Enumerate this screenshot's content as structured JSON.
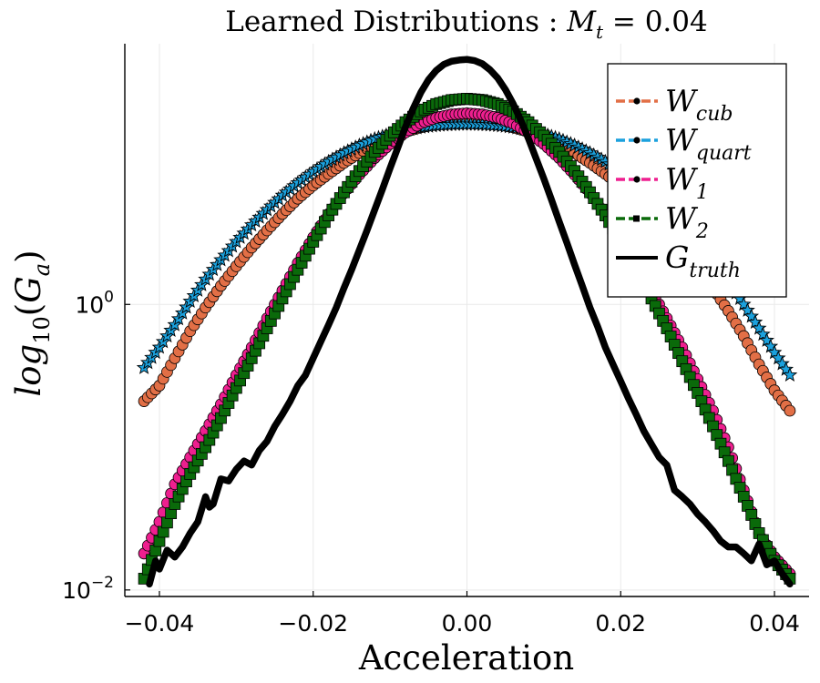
{
  "chart_data": {
    "type": "scatter",
    "title": "Learned Distributions : M_t = 0.04",
    "title_parts": {
      "prefix": "Learned Distributions : ",
      "var": "M",
      "sub": "t",
      "suffix": " = 0.04"
    },
    "xlabel": "Acceleration",
    "ylabel": "log_10(G_a)",
    "ylabel_parts": {
      "fn": "log",
      "sub": "10",
      "open": "(",
      "var": "G",
      "var_sub": "a",
      "close": ")"
    },
    "x_scale": "linear",
    "y_scale": "log10",
    "xlim": [
      -0.0445,
      0.0445
    ],
    "ylim": [
      0.009,
      67
    ],
    "grid": true,
    "legend_position": "top-right",
    "xticks": [
      {
        "value": -0.04,
        "label": "−0.04"
      },
      {
        "value": -0.02,
        "label": "−0.02"
      },
      {
        "value": 0.0,
        "label": "0.00"
      },
      {
        "value": 0.02,
        "label": "0.02"
      },
      {
        "value": 0.04,
        "label": "0.04"
      }
    ],
    "yticks": [
      {
        "value": 0.01,
        "base": "10",
        "exp": "−2"
      },
      {
        "value": 1,
        "base": "10",
        "exp": "0"
      }
    ],
    "series": [
      {
        "name": "W_cub",
        "base": "W",
        "sub": "cub",
        "color": "#e26f46",
        "marker": "circle",
        "style": "dashed",
        "x": [
          -0.042,
          -0.04,
          -0.038,
          -0.036,
          -0.034,
          -0.032,
          -0.03,
          -0.028,
          -0.026,
          -0.024,
          -0.022,
          -0.02,
          -0.018,
          -0.016,
          -0.014,
          -0.012,
          -0.01,
          -0.008,
          -0.006,
          -0.004,
          -0.002,
          0.0,
          0.002,
          0.004,
          0.006,
          0.008,
          0.01,
          0.012,
          0.014,
          0.016,
          0.018,
          0.02,
          0.022,
          0.024,
          0.026,
          0.028,
          0.03,
          0.032,
          0.034,
          0.036,
          0.038,
          0.04,
          0.042
        ],
        "y": [
          0.21,
          0.27,
          0.42,
          0.65,
          0.95,
          1.35,
          1.85,
          2.5,
          3.3,
          4.3,
          5.5,
          6.8,
          8.2,
          9.8,
          11.5,
          13.2,
          14.8,
          16.2,
          17.4,
          18.3,
          18.9,
          19.1,
          18.9,
          18.3,
          17.4,
          16.2,
          14.8,
          13.2,
          11.5,
          9.8,
          8.2,
          6.8,
          5.5,
          4.3,
          3.3,
          2.5,
          1.85,
          1.3,
          0.9,
          0.6,
          0.38,
          0.25,
          0.18
        ]
      },
      {
        "name": "W_quart",
        "base": "W",
        "sub": "quart",
        "color": "#1ba1dd",
        "marker": "star",
        "style": "dashed",
        "x": [
          -0.042,
          -0.04,
          -0.038,
          -0.036,
          -0.034,
          -0.032,
          -0.03,
          -0.028,
          -0.026,
          -0.024,
          -0.022,
          -0.02,
          -0.018,
          -0.016,
          -0.014,
          -0.012,
          -0.01,
          -0.008,
          -0.006,
          -0.004,
          -0.002,
          0.0,
          0.002,
          0.004,
          0.006,
          0.008,
          0.01,
          0.012,
          0.014,
          0.016,
          0.018,
          0.02,
          0.022,
          0.024,
          0.026,
          0.028,
          0.03,
          0.032,
          0.034,
          0.036,
          0.038,
          0.04,
          0.042
        ],
        "y": [
          0.36,
          0.5,
          0.72,
          1.05,
          1.5,
          2.05,
          2.75,
          3.6,
          4.6,
          5.8,
          7.1,
          8.5,
          10.0,
          11.5,
          13.0,
          14.4,
          15.6,
          16.6,
          17.4,
          17.9,
          18.2,
          18.3,
          18.2,
          17.9,
          17.4,
          16.6,
          15.6,
          14.4,
          13.0,
          11.5,
          10.0,
          8.5,
          7.1,
          5.8,
          4.6,
          3.6,
          2.75,
          2.0,
          1.45,
          1.0,
          0.68,
          0.46,
          0.32
        ]
      },
      {
        "name": "W_1",
        "base": "W",
        "sub": "1",
        "color": "#ee1f8f",
        "marker": "circle",
        "style": "dashed",
        "x": [
          -0.042,
          -0.04,
          -0.038,
          -0.036,
          -0.034,
          -0.032,
          -0.03,
          -0.028,
          -0.026,
          -0.024,
          -0.022,
          -0.02,
          -0.018,
          -0.016,
          -0.014,
          -0.012,
          -0.01,
          -0.008,
          -0.006,
          -0.004,
          -0.002,
          0.0,
          0.002,
          0.004,
          0.006,
          0.008,
          0.01,
          0.012,
          0.014,
          0.016,
          0.018,
          0.02,
          0.022,
          0.024,
          0.026,
          0.028,
          0.03,
          0.032,
          0.034,
          0.036,
          0.038,
          0.04,
          0.042
        ],
        "y": [
          0.018,
          0.03,
          0.055,
          0.085,
          0.13,
          0.2,
          0.32,
          0.5,
          0.8,
          1.25,
          1.95,
          2.95,
          4.3,
          6.0,
          8.1,
          10.6,
          13.3,
          16.0,
          18.5,
          20.3,
          21.4,
          21.8,
          21.4,
          20.3,
          18.5,
          16.0,
          13.3,
          10.6,
          8.1,
          6.0,
          4.3,
          2.95,
          1.95,
          1.25,
          0.8,
          0.5,
          0.3,
          0.18,
          0.1,
          0.05,
          0.025,
          0.017,
          0.013
        ]
      },
      {
        "name": "W_2",
        "base": "W",
        "sub": "2",
        "color": "#0a6a0a",
        "marker": "square",
        "style": "dashed",
        "x": [
          -0.042,
          -0.04,
          -0.038,
          -0.036,
          -0.034,
          -0.032,
          -0.03,
          -0.028,
          -0.026,
          -0.024,
          -0.022,
          -0.02,
          -0.018,
          -0.016,
          -0.014,
          -0.012,
          -0.01,
          -0.008,
          -0.006,
          -0.004,
          -0.002,
          0.0,
          0.002,
          0.004,
          0.006,
          0.008,
          0.01,
          0.012,
          0.014,
          0.016,
          0.018,
          0.02,
          0.022,
          0.024,
          0.026,
          0.028,
          0.03,
          0.032,
          0.034,
          0.036,
          0.038,
          0.04,
          0.042
        ],
        "y": [
          0.012,
          0.022,
          0.04,
          0.065,
          0.1,
          0.16,
          0.26,
          0.42,
          0.68,
          1.1,
          1.75,
          2.75,
          4.2,
          6.1,
          8.6,
          11.7,
          15.2,
          18.9,
          22.5,
          25.3,
          27.0,
          27.6,
          27.0,
          25.3,
          22.5,
          18.9,
          15.2,
          11.7,
          8.6,
          6.1,
          4.2,
          2.75,
          1.75,
          1.1,
          0.68,
          0.4,
          0.24,
          0.14,
          0.08,
          0.045,
          0.025,
          0.016,
          0.012
        ]
      },
      {
        "name": "G_truth",
        "base": "G",
        "sub": "truth",
        "color": "#000000",
        "marker": "none",
        "style": "solid",
        "x": [
          -0.0413,
          -0.0405,
          -0.04,
          -0.039,
          -0.038,
          -0.037,
          -0.036,
          -0.035,
          -0.034,
          -0.0335,
          -0.033,
          -0.032,
          -0.031,
          -0.03,
          -0.029,
          -0.028,
          -0.027,
          -0.026,
          -0.025,
          -0.024,
          -0.023,
          -0.022,
          -0.021,
          -0.02,
          -0.019,
          -0.018,
          -0.017,
          -0.016,
          -0.015,
          -0.014,
          -0.013,
          -0.012,
          -0.011,
          -0.01,
          -0.009,
          -0.008,
          -0.007,
          -0.006,
          -0.005,
          -0.004,
          -0.003,
          -0.002,
          -0.001,
          0.0,
          0.001,
          0.002,
          0.003,
          0.004,
          0.005,
          0.006,
          0.007,
          0.008,
          0.009,
          0.01,
          0.011,
          0.012,
          0.013,
          0.014,
          0.015,
          0.016,
          0.017,
          0.018,
          0.019,
          0.02,
          0.021,
          0.022,
          0.023,
          0.024,
          0.025,
          0.026,
          0.027,
          0.028,
          0.029,
          0.03,
          0.031,
          0.032,
          0.033,
          0.034,
          0.035,
          0.036,
          0.037,
          0.038,
          0.039,
          0.04,
          0.041,
          0.042
        ],
        "y": [
          0.011,
          0.016,
          0.014,
          0.019,
          0.017,
          0.02,
          0.025,
          0.03,
          0.045,
          0.038,
          0.04,
          0.06,
          0.058,
          0.07,
          0.08,
          0.075,
          0.095,
          0.11,
          0.14,
          0.17,
          0.21,
          0.27,
          0.32,
          0.42,
          0.55,
          0.72,
          0.95,
          1.3,
          1.75,
          2.4,
          3.3,
          4.6,
          6.4,
          9.0,
          12.5,
          17.5,
          23.5,
          30.5,
          37.5,
          43.5,
          48.0,
          50.5,
          51.5,
          52.0,
          51.0,
          48.5,
          44.0,
          38.5,
          32.0,
          25.5,
          19.5,
          14.5,
          10.5,
          7.6,
          5.4,
          3.8,
          2.7,
          1.9,
          1.35,
          0.95,
          0.7,
          0.5,
          0.38,
          0.29,
          0.22,
          0.17,
          0.13,
          0.105,
          0.085,
          0.075,
          0.05,
          0.045,
          0.04,
          0.034,
          0.03,
          0.026,
          0.022,
          0.02,
          0.02,
          0.018,
          0.016,
          0.021,
          0.015,
          0.016,
          0.013,
          0.011
        ]
      }
    ]
  }
}
